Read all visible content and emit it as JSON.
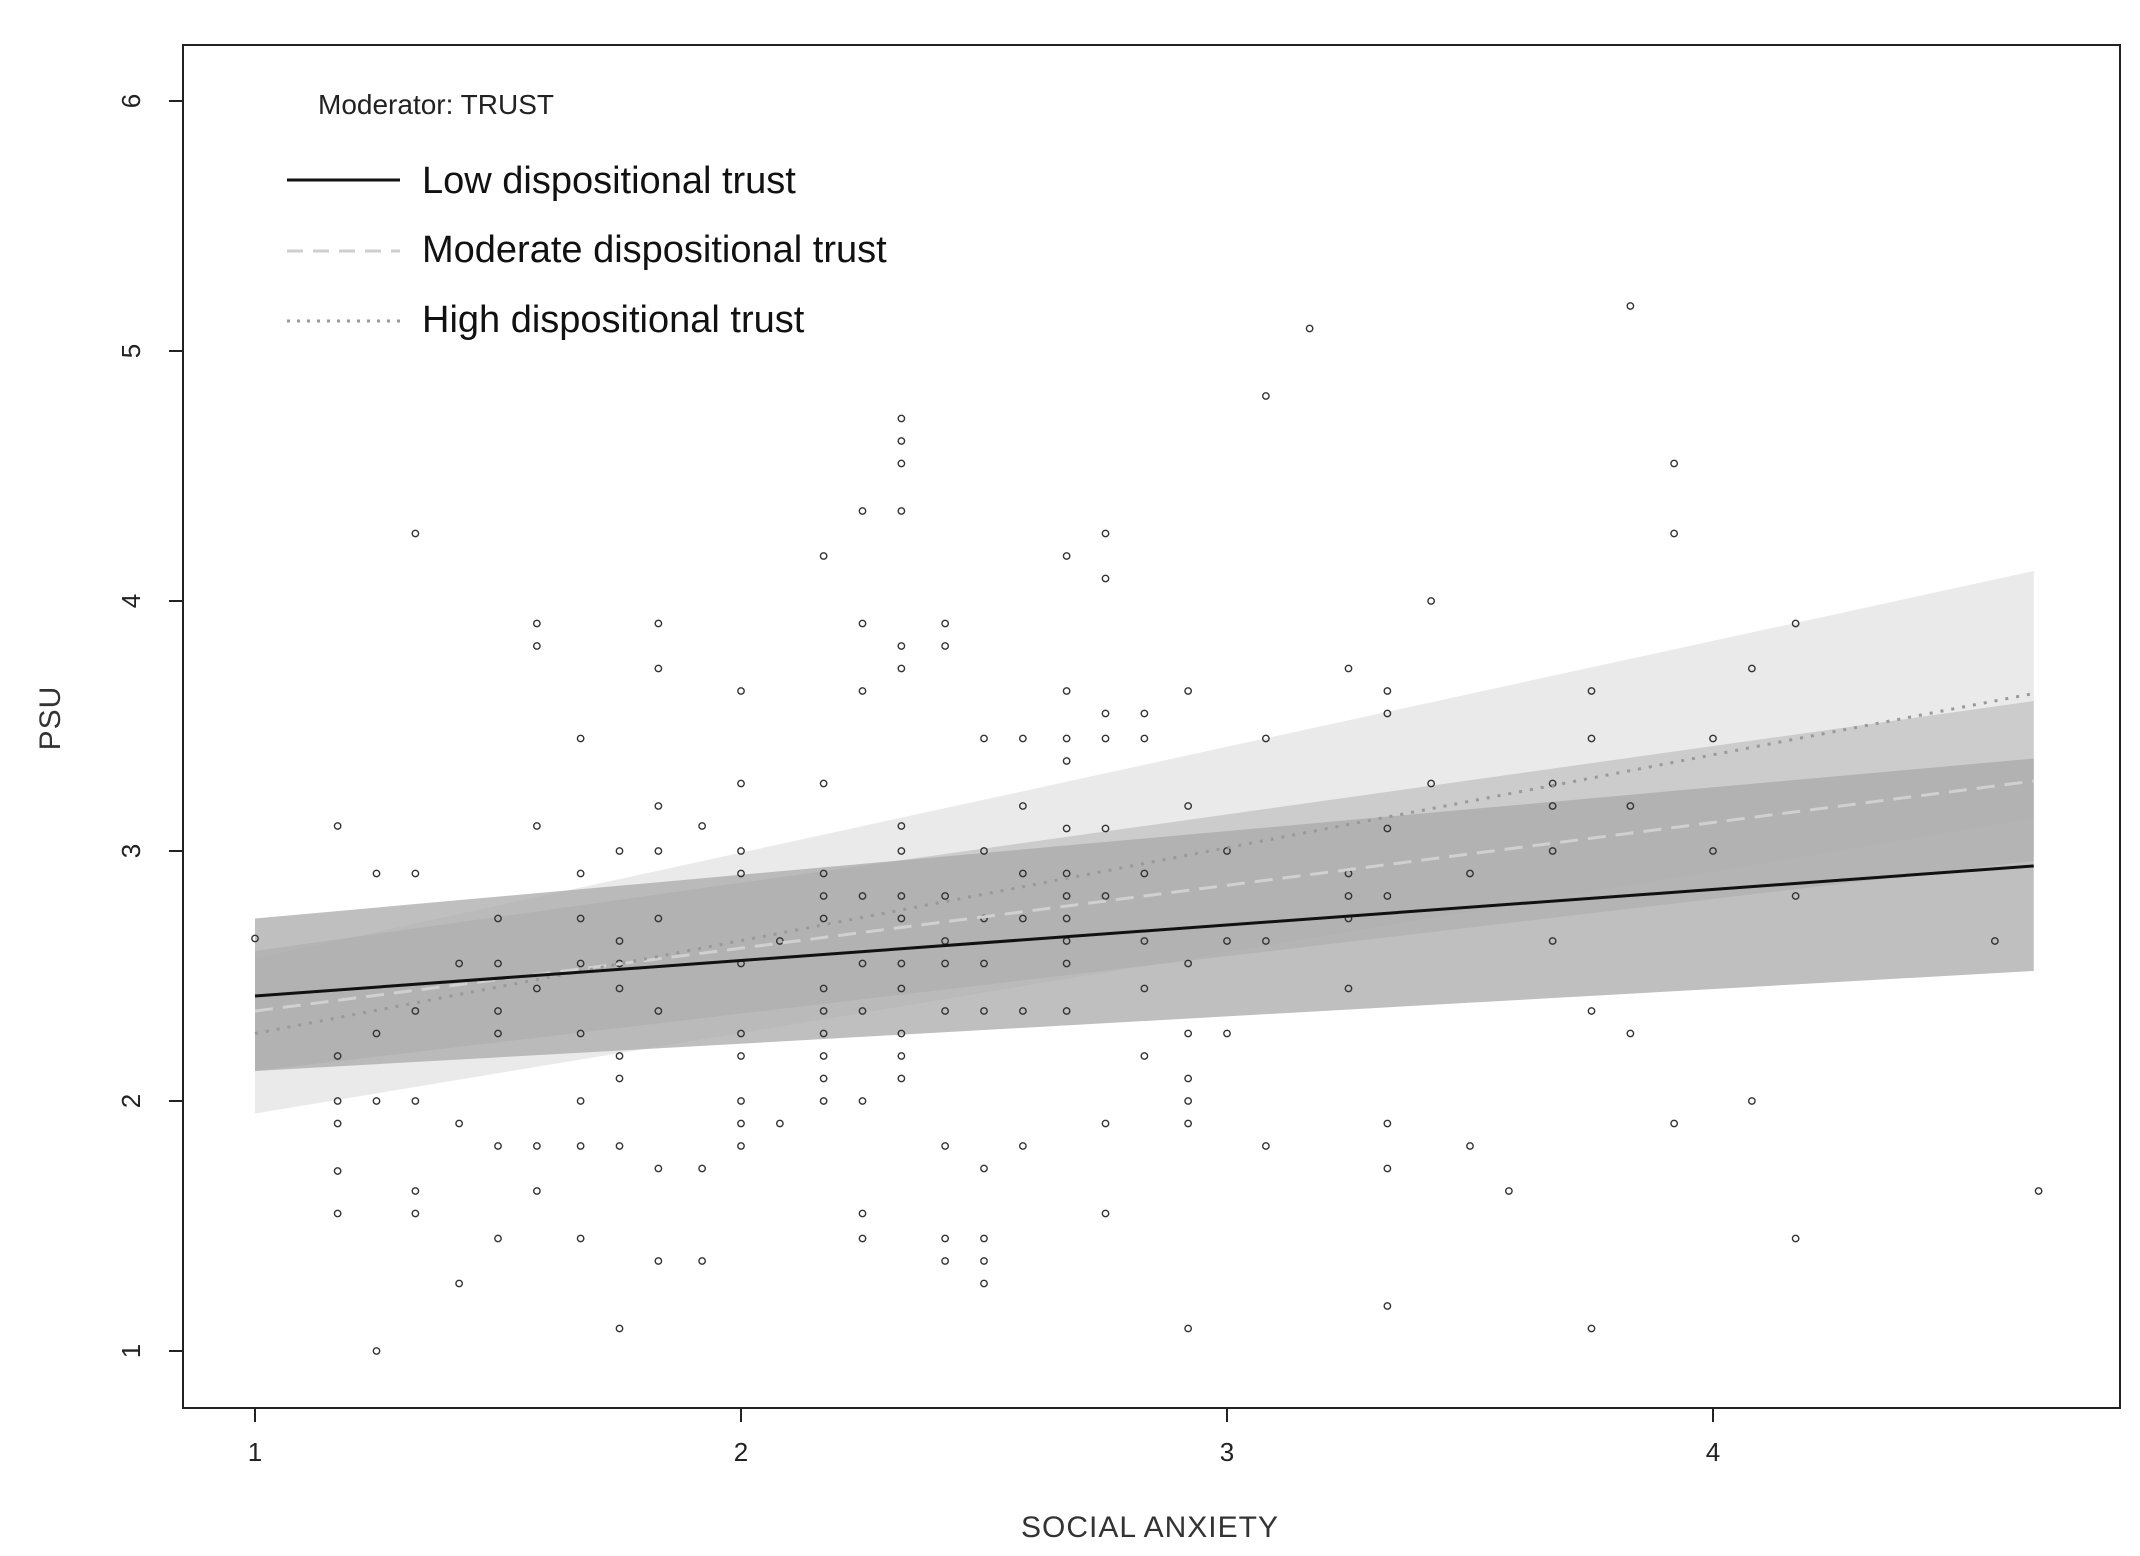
{
  "chart_data": {
    "type": "scatter",
    "title": "",
    "xlabel": "SOCIAL  ANXIETY",
    "ylabel": "PSU",
    "xlim": [
      0.85,
      4.65
    ],
    "ylim": [
      0.8,
      6.2
    ],
    "xticks": [
      1,
      2,
      3,
      4
    ],
    "yticks": [
      1,
      2,
      3,
      4,
      5,
      6
    ],
    "x_tick_labels": [
      "1",
      "2",
      "3",
      "4"
    ],
    "y_tick_labels": [
      "1",
      "2",
      "3",
      "4",
      "5",
      "6"
    ],
    "grid": false,
    "legend": {
      "title": "Moderator: TRUST",
      "placement": "top-left",
      "entries": [
        {
          "label": "Low dispositional trust",
          "style": "solid",
          "color": "#111111"
        },
        {
          "label": "Moderate dispositional trust",
          "style": "dashed",
          "color": "#c8c8c8"
        },
        {
          "label": "High dispositional trust",
          "style": "dotted",
          "color": "#9a9a9a"
        }
      ]
    },
    "series": [
      {
        "name": "Low dispositional trust",
        "x": [
          1.0,
          4.66
        ],
        "y": [
          2.42,
          2.94
        ],
        "band_lower": [
          2.12,
          2.52
        ],
        "band_upper": [
          2.73,
          3.37
        ],
        "style": "solid",
        "color": "#111111",
        "band_color": "#a9a9a9"
      },
      {
        "name": "Moderate dispositional trust",
        "x": [
          1.0,
          4.66
        ],
        "y": [
          2.36,
          3.28
        ],
        "band_lower": [
          2.12,
          2.96
        ],
        "band_upper": [
          2.6,
          3.6
        ],
        "style": "dashed",
        "color": "#d0d0d0",
        "band_color": "#c2c2c2"
      },
      {
        "name": "High dispositional trust",
        "x": [
          1.0,
          4.66
        ],
        "y": [
          2.27,
          3.63
        ],
        "band_lower": [
          1.95,
          3.13
        ],
        "band_upper": [
          2.57,
          4.12
        ],
        "style": "dotted",
        "color": "#999999",
        "band_color": "#e3e3e3"
      }
    ],
    "points": [
      [
        1.0,
        2.65
      ],
      [
        1.17,
        3.1
      ],
      [
        1.17,
        2.18
      ],
      [
        1.17,
        2.0
      ],
      [
        1.17,
        1.91
      ],
      [
        1.17,
        1.72
      ],
      [
        1.17,
        1.55
      ],
      [
        1.25,
        2.91
      ],
      [
        1.25,
        2.27
      ],
      [
        1.25,
        2.0
      ],
      [
        1.25,
        1.0
      ],
      [
        1.33,
        4.27
      ],
      [
        1.33,
        2.91
      ],
      [
        1.33,
        2.36
      ],
      [
        1.33,
        2.0
      ],
      [
        1.33,
        1.64
      ],
      [
        1.33,
        1.55
      ],
      [
        1.42,
        2.55
      ],
      [
        1.42,
        1.91
      ],
      [
        1.42,
        1.27
      ],
      [
        1.5,
        2.73
      ],
      [
        1.5,
        2.55
      ],
      [
        1.5,
        2.36
      ],
      [
        1.5,
        2.27
      ],
      [
        1.5,
        1.82
      ],
      [
        1.5,
        1.45
      ],
      [
        1.58,
        3.91
      ],
      [
        1.58,
        3.82
      ],
      [
        1.58,
        3.1
      ],
      [
        1.58,
        2.45
      ],
      [
        1.58,
        1.82
      ],
      [
        1.58,
        1.64
      ],
      [
        1.67,
        3.45
      ],
      [
        1.67,
        2.91
      ],
      [
        1.67,
        2.73
      ],
      [
        1.67,
        2.55
      ],
      [
        1.67,
        2.27
      ],
      [
        1.67,
        2.0
      ],
      [
        1.67,
        1.82
      ],
      [
        1.67,
        1.45
      ],
      [
        1.75,
        3.0
      ],
      [
        1.75,
        2.64
      ],
      [
        1.75,
        2.55
      ],
      [
        1.75,
        2.45
      ],
      [
        1.75,
        2.18
      ],
      [
        1.75,
        2.09
      ],
      [
        1.75,
        1.82
      ],
      [
        1.75,
        1.09
      ],
      [
        1.83,
        3.91
      ],
      [
        1.83,
        3.73
      ],
      [
        1.83,
        3.18
      ],
      [
        1.83,
        3.0
      ],
      [
        1.83,
        2.73
      ],
      [
        1.83,
        2.36
      ],
      [
        1.83,
        1.73
      ],
      [
        1.83,
        1.36
      ],
      [
        1.92,
        3.1
      ],
      [
        1.92,
        1.73
      ],
      [
        1.92,
        1.36
      ],
      [
        2.0,
        3.64
      ],
      [
        2.0,
        3.27
      ],
      [
        2.0,
        3.0
      ],
      [
        2.0,
        2.91
      ],
      [
        2.0,
        2.55
      ],
      [
        2.0,
        2.27
      ],
      [
        2.0,
        2.18
      ],
      [
        2.0,
        2.0
      ],
      [
        2.0,
        1.91
      ],
      [
        2.0,
        1.82
      ],
      [
        2.08,
        2.64
      ],
      [
        2.08,
        1.91
      ],
      [
        2.17,
        4.18
      ],
      [
        2.17,
        3.27
      ],
      [
        2.17,
        2.91
      ],
      [
        2.17,
        2.82
      ],
      [
        2.17,
        2.73
      ],
      [
        2.17,
        2.45
      ],
      [
        2.17,
        2.36
      ],
      [
        2.17,
        2.27
      ],
      [
        2.17,
        2.18
      ],
      [
        2.17,
        2.09
      ],
      [
        2.17,
        2.0
      ],
      [
        2.25,
        4.36
      ],
      [
        2.25,
        3.91
      ],
      [
        2.25,
        3.64
      ],
      [
        2.25,
        2.82
      ],
      [
        2.25,
        2.55
      ],
      [
        2.25,
        2.36
      ],
      [
        2.25,
        2.0
      ],
      [
        2.25,
        1.55
      ],
      [
        2.25,
        1.45
      ],
      [
        2.33,
        4.73
      ],
      [
        2.33,
        4.64
      ],
      [
        2.33,
        4.55
      ],
      [
        2.33,
        4.36
      ],
      [
        2.33,
        3.82
      ],
      [
        2.33,
        3.73
      ],
      [
        2.33,
        3.1
      ],
      [
        2.33,
        3.0
      ],
      [
        2.33,
        2.82
      ],
      [
        2.33,
        2.73
      ],
      [
        2.33,
        2.55
      ],
      [
        2.33,
        2.45
      ],
      [
        2.33,
        2.27
      ],
      [
        2.33,
        2.18
      ],
      [
        2.33,
        2.09
      ],
      [
        2.42,
        3.91
      ],
      [
        2.42,
        3.82
      ],
      [
        2.42,
        2.82
      ],
      [
        2.42,
        2.64
      ],
      [
        2.42,
        2.55
      ],
      [
        2.42,
        2.36
      ],
      [
        2.42,
        1.82
      ],
      [
        2.42,
        1.45
      ],
      [
        2.42,
        1.36
      ],
      [
        2.5,
        3.45
      ],
      [
        2.5,
        3.0
      ],
      [
        2.5,
        2.73
      ],
      [
        2.5,
        2.55
      ],
      [
        2.5,
        2.36
      ],
      [
        2.5,
        1.73
      ],
      [
        2.5,
        1.45
      ],
      [
        2.5,
        1.36
      ],
      [
        2.5,
        1.27
      ],
      [
        2.58,
        3.45
      ],
      [
        2.58,
        3.18
      ],
      [
        2.58,
        2.91
      ],
      [
        2.58,
        2.73
      ],
      [
        2.58,
        2.36
      ],
      [
        2.58,
        1.82
      ],
      [
        2.67,
        4.18
      ],
      [
        2.67,
        3.64
      ],
      [
        2.67,
        3.45
      ],
      [
        2.67,
        3.36
      ],
      [
        2.67,
        3.09
      ],
      [
        2.67,
        2.91
      ],
      [
        2.67,
        2.82
      ],
      [
        2.67,
        2.73
      ],
      [
        2.67,
        2.64
      ],
      [
        2.67,
        2.55
      ],
      [
        2.67,
        2.36
      ],
      [
        2.75,
        4.27
      ],
      [
        2.75,
        4.09
      ],
      [
        2.75,
        3.55
      ],
      [
        2.75,
        3.45
      ],
      [
        2.75,
        3.09
      ],
      [
        2.75,
        2.82
      ],
      [
        2.75,
        1.91
      ],
      [
        2.75,
        1.55
      ],
      [
        2.83,
        3.55
      ],
      [
        2.83,
        3.45
      ],
      [
        2.83,
        2.91
      ],
      [
        2.83,
        2.64
      ],
      [
        2.83,
        2.45
      ],
      [
        2.83,
        2.18
      ],
      [
        2.92,
        3.64
      ],
      [
        2.92,
        3.18
      ],
      [
        2.92,
        2.55
      ],
      [
        2.92,
        2.27
      ],
      [
        2.92,
        2.09
      ],
      [
        2.92,
        2.0
      ],
      [
        2.92,
        1.91
      ],
      [
        2.92,
        1.09
      ],
      [
        3.0,
        3.0
      ],
      [
        3.0,
        2.64
      ],
      [
        3.0,
        2.27
      ],
      [
        3.08,
        4.82
      ],
      [
        3.08,
        3.45
      ],
      [
        3.08,
        2.64
      ],
      [
        3.08,
        1.82
      ],
      [
        3.17,
        5.09
      ],
      [
        3.25,
        3.73
      ],
      [
        3.25,
        2.91
      ],
      [
        3.25,
        2.82
      ],
      [
        3.25,
        2.73
      ],
      [
        3.25,
        2.45
      ],
      [
        3.33,
        3.64
      ],
      [
        3.33,
        3.55
      ],
      [
        3.33,
        3.09
      ],
      [
        3.33,
        2.82
      ],
      [
        3.33,
        1.91
      ],
      [
        3.33,
        1.73
      ],
      [
        3.33,
        1.18
      ],
      [
        3.42,
        4.0
      ],
      [
        3.42,
        3.27
      ],
      [
        3.5,
        2.91
      ],
      [
        3.5,
        1.82
      ],
      [
        3.58,
        1.64
      ],
      [
        3.67,
        3.27
      ],
      [
        3.67,
        3.18
      ],
      [
        3.67,
        3.0
      ],
      [
        3.67,
        2.64
      ],
      [
        3.75,
        3.64
      ],
      [
        3.75,
        3.45
      ],
      [
        3.75,
        2.36
      ],
      [
        3.75,
        1.09
      ],
      [
        3.83,
        5.18
      ],
      [
        3.83,
        3.18
      ],
      [
        3.83,
        2.27
      ],
      [
        3.92,
        4.55
      ],
      [
        3.92,
        4.27
      ],
      [
        3.92,
        1.91
      ],
      [
        4.0,
        3.45
      ],
      [
        4.0,
        3.0
      ],
      [
        4.08,
        3.73
      ],
      [
        4.08,
        2.0
      ],
      [
        4.17,
        3.91
      ],
      [
        4.17,
        2.82
      ],
      [
        4.17,
        1.45
      ],
      [
        4.58,
        2.64
      ],
      [
        4.67,
        1.64
      ]
    ]
  }
}
